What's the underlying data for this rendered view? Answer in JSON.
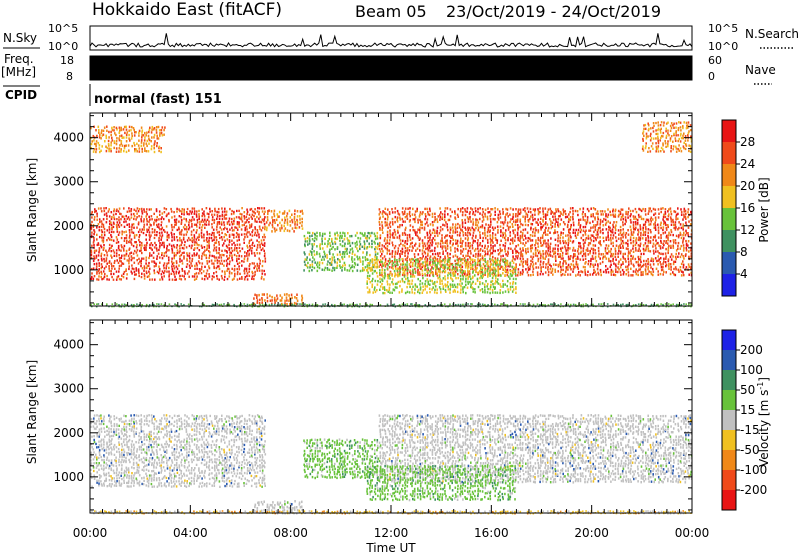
{
  "header": {
    "title": "Hokkaido East (fitACF)",
    "beam": "Beam 05",
    "dates": "23/Oct/2019 - 24/Oct/2019"
  },
  "strips": {
    "nsky_label": "N.Sky",
    "nsky_tick_top": "10^5",
    "nsky_tick_bottom": "10^0",
    "nsearch_label": "N.Search",
    "freq_label": "Freq.",
    "freq_unit": "[MHz]",
    "freq_tick_top": "18",
    "freq_tick_bottom": "8",
    "nave_tick_top": "60",
    "nave_tick_bottom": "0",
    "nave_label": "Nave",
    "cpid_label": "CPID",
    "cpid_value": "normal (fast) 151"
  },
  "chart_data": [
    {
      "type": "heatmap",
      "parameter": "Power",
      "xlabel": "Time UT",
      "ylabel": "Slant Range [km]",
      "x_ticks": [
        "00:00",
        "04:00",
        "08:00",
        "12:00",
        "16:00",
        "20:00",
        "00:00"
      ],
      "xlim_hours": [
        0,
        24
      ],
      "y_ticks": [
        1000,
        2000,
        3000,
        4000
      ],
      "ylim": [
        180,
        4560
      ],
      "colorbar": {
        "label": "Power [dB]",
        "ticks": [
          "4",
          "8",
          "12",
          "16",
          "20",
          "24",
          "28"
        ],
        "range": [
          0,
          32
        ],
        "colors": [
          "#1e22e6",
          "#2a5ab0",
          "#3f9160",
          "#68c23a",
          "#f0c020",
          "#f08818",
          "#f04a1a",
          "#e81414"
        ]
      },
      "regions": [
        {
          "t": [
            0,
            7.0
          ],
          "r": [
            800,
            2450
          ],
          "level": 27
        },
        {
          "t": [
            7.0,
            8.5
          ],
          "r": [
            1900,
            2400
          ],
          "level": 22
        },
        {
          "t": [
            11.5,
            24
          ],
          "r": [
            900,
            2450
          ],
          "level": 26
        },
        {
          "t": [
            6.5,
            8.5
          ],
          "r": [
            250,
            500
          ],
          "level": 24
        },
        {
          "t": [
            8.5,
            11.5
          ],
          "r": [
            1000,
            1900
          ],
          "level": 14
        },
        {
          "t": [
            11,
            17
          ],
          "r": [
            500,
            1300
          ],
          "level": 16
        },
        {
          "t": [
            0,
            24
          ],
          "r": [
            180,
            260
          ],
          "level": 12
        },
        {
          "t": [
            0,
            3.0
          ],
          "r": [
            3700,
            4300
          ],
          "level": 22
        },
        {
          "t": [
            22,
            24
          ],
          "r": [
            3700,
            4400
          ],
          "level": 22
        }
      ]
    },
    {
      "type": "heatmap",
      "parameter": "Velocity",
      "xlabel": "Time UT",
      "ylabel": "Slant Range [km]",
      "x_ticks": [
        "00:00",
        "04:00",
        "08:00",
        "12:00",
        "16:00",
        "20:00",
        "00:00"
      ],
      "xlim_hours": [
        0,
        24
      ],
      "y_ticks": [
        1000,
        2000,
        3000,
        4000
      ],
      "ylim": [
        180,
        4560
      ],
      "colorbar": {
        "label": "Velocity [m s^-1]",
        "ticks": [
          "200",
          "100",
          "50",
          "15",
          "-15",
          "-50",
          "-100",
          "-200"
        ],
        "colors": [
          "#1e22e6",
          "#2a5ab0",
          "#3f9160",
          "#68c23a",
          "#c0c0c0",
          "#f0c020",
          "#f08818",
          "#f04a1a",
          "#e81414"
        ]
      },
      "regions": [
        {
          "t": [
            0,
            7.0
          ],
          "r": [
            800,
            2450
          ],
          "class": "gray"
        },
        {
          "t": [
            11.5,
            24
          ],
          "r": [
            900,
            2450
          ],
          "class": "gray"
        },
        {
          "t": [
            8.5,
            11.5
          ],
          "r": [
            1000,
            1900
          ],
          "class": "green"
        },
        {
          "t": [
            11,
            17
          ],
          "r": [
            500,
            1300
          ],
          "class": "green"
        },
        {
          "t": [
            6.5,
            8.5
          ],
          "r": [
            250,
            500
          ],
          "class": "gray"
        },
        {
          "t": [
            0,
            24
          ],
          "r": [
            180,
            260
          ],
          "class": "yellow"
        }
      ]
    }
  ]
}
